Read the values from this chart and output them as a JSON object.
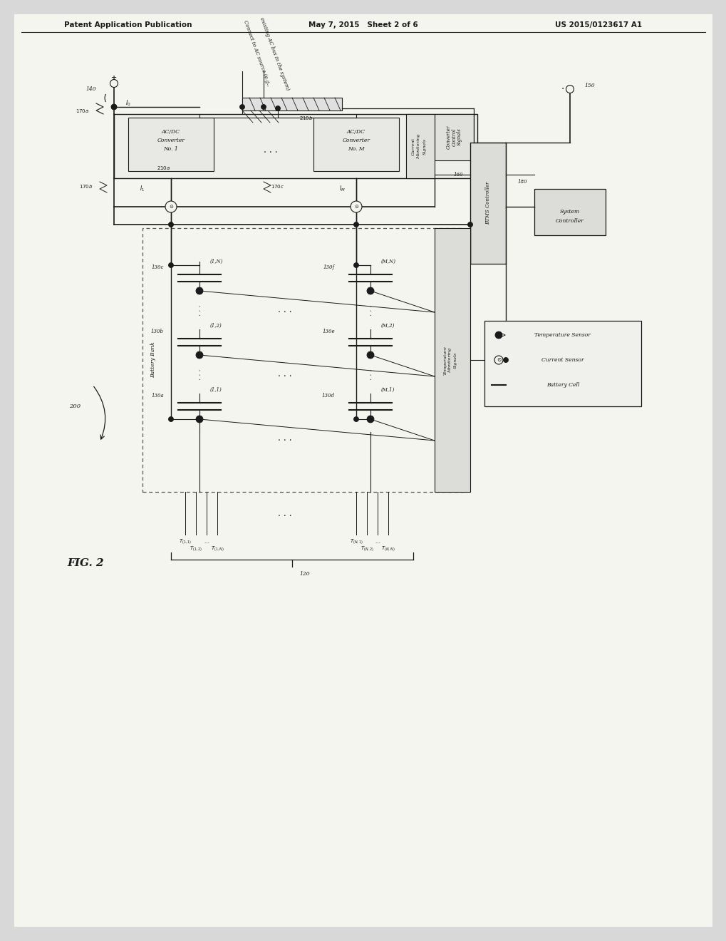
{
  "title_left": "Patent Application Publication",
  "title_mid": "May 7, 2015   Sheet 2 of 6",
  "title_right": "US 2015/0123617 A1",
  "fig_label": "FIG. 2",
  "bg_color": "#e8e8e8",
  "line_color": "#1a1a1a",
  "text_color": "#1a1a1a",
  "header_font": 8.5,
  "body_font": 7.0,
  "small_font": 6.0
}
